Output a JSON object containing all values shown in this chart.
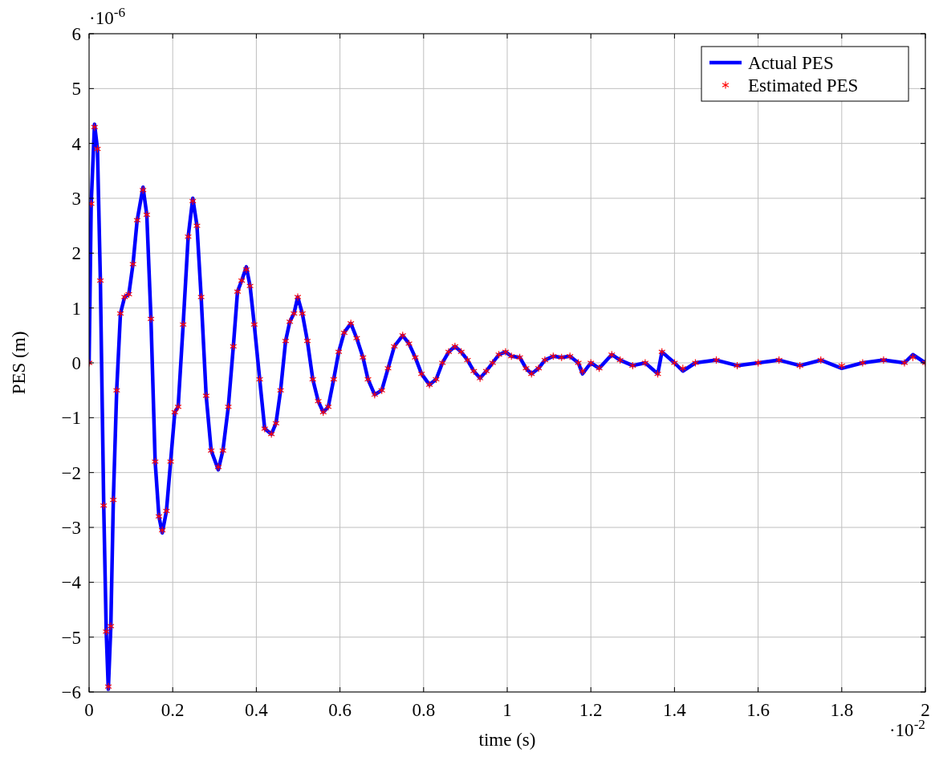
{
  "chart_data": {
    "type": "line",
    "xlabel": "time (s)",
    "ylabel": "PES (m)",
    "xlim": [
      0,
      2
    ],
    "xticks": [
      0,
      0.2,
      0.4,
      0.6,
      0.8,
      1,
      1.2,
      1.4,
      1.6,
      1.8,
      2
    ],
    "ylim": [
      -6,
      6
    ],
    "yticks": [
      -6,
      -5,
      -4,
      -3,
      -2,
      -1,
      0,
      1,
      2,
      3,
      4,
      5,
      6
    ],
    "grid": true,
    "legend": "top right",
    "annotations": [
      "·10$^{-6}$",
      "·10$^{-2}$"
    ],
    "x": [
      0,
      0.005,
      0.013,
      0.02,
      0.027,
      0.035,
      0.041,
      0.046,
      0.052,
      0.058,
      0.066,
      0.075,
      0.085,
      0.095,
      0.105,
      0.115,
      0.129,
      0.138,
      0.148,
      0.158,
      0.167,
      0.175,
      0.185,
      0.195,
      0.205,
      0.213,
      0.225,
      0.237,
      0.248,
      0.258,
      0.268,
      0.28,
      0.292,
      0.309,
      0.32,
      0.333,
      0.345,
      0.355,
      0.365,
      0.376,
      0.385,
      0.395,
      0.408,
      0.42,
      0.436,
      0.447,
      0.458,
      0.47,
      0.48,
      0.49,
      0.499,
      0.51,
      0.522,
      0.535,
      0.548,
      0.56,
      0.572,
      0.585,
      0.597,
      0.61,
      0.626,
      0.64,
      0.655,
      0.667,
      0.683,
      0.7,
      0.715,
      0.73,
      0.75,
      0.765,
      0.78,
      0.795,
      0.814,
      0.83,
      0.845,
      0.86,
      0.875,
      0.89,
      0.905,
      0.92,
      0.935,
      0.95,
      0.965,
      0.98,
      0.996,
      1.01,
      1.03,
      1.045,
      1.058,
      1.075,
      1.09,
      1.11,
      1.13,
      1.15,
      1.17,
      1.18,
      1.2,
      1.22,
      1.25,
      1.27,
      1.3,
      1.33,
      1.36,
      1.37,
      1.4,
      1.42,
      1.45,
      1.5,
      1.55,
      1.6,
      1.65,
      1.7,
      1.75,
      1.8,
      1.85,
      1.9,
      1.95,
      1.97,
      2
    ],
    "series": [
      {
        "name": "Actual PES",
        "color": "#0000ff",
        "values": [
          0,
          2.9,
          4.35,
          3.9,
          1.5,
          -2.6,
          -4.9,
          -5.95,
          -4.8,
          -2.5,
          -0.5,
          0.9,
          1.2,
          1.25,
          1.8,
          2.6,
          3.2,
          2.7,
          0.8,
          -1.8,
          -2.8,
          -3.1,
          -2.7,
          -1.8,
          -0.9,
          -0.8,
          0.7,
          2.3,
          3,
          2.5,
          1.2,
          -0.6,
          -1.6,
          -1.95,
          -1.6,
          -0.8,
          0.3,
          1.3,
          1.5,
          1.75,
          1.4,
          0.7,
          -0.3,
          -1.2,
          -1.3,
          -1.1,
          -0.5,
          0.4,
          0.75,
          0.9,
          1.2,
          0.9,
          0.4,
          -0.3,
          -0.7,
          -0.9,
          -0.8,
          -0.3,
          0.2,
          0.55,
          0.72,
          0.45,
          0.1,
          -0.3,
          -0.58,
          -0.5,
          -0.1,
          0.3,
          0.5,
          0.35,
          0.1,
          -0.2,
          -0.4,
          -0.3,
          0,
          0.2,
          0.3,
          0.2,
          0.05,
          -0.15,
          -0.28,
          -0.15,
          0,
          0.15,
          0.2,
          0.12,
          0.1,
          -0.1,
          -0.2,
          -0.1,
          0.05,
          0.12,
          0.1,
          0.12,
          0,
          -0.2,
          0,
          -0.1,
          0.15,
          0.05,
          -0.05,
          0,
          -0.2,
          0.2,
          0,
          -0.15,
          0,
          0.05,
          -0.05,
          0,
          0.05,
          -0.05,
          0.05,
          -0.1,
          0,
          0.05,
          0,
          0.15,
          0
        ]
      },
      {
        "name": "Estimated PES",
        "type": "scatter",
        "color": "#ff0000",
        "marker": "cross",
        "values": [
          0,
          2.9,
          4.3,
          3.9,
          1.5,
          -2.6,
          -4.9,
          -5.9,
          -4.8,
          -2.5,
          -0.5,
          0.9,
          1.2,
          1.25,
          1.8,
          2.6,
          3.15,
          2.7,
          0.8,
          -1.8,
          -2.8,
          -3.05,
          -2.7,
          -1.8,
          -0.9,
          -0.8,
          0.7,
          2.3,
          2.95,
          2.5,
          1.2,
          -0.6,
          -1.6,
          -1.9,
          -1.6,
          -0.8,
          0.3,
          1.3,
          1.5,
          1.7,
          1.4,
          0.7,
          -0.3,
          -1.2,
          -1.3,
          -1.1,
          -0.5,
          0.4,
          0.75,
          0.9,
          1.2,
          0.9,
          0.4,
          -0.3,
          -0.7,
          -0.9,
          -0.8,
          -0.3,
          0.2,
          0.55,
          0.72,
          0.45,
          0.1,
          -0.3,
          -0.58,
          -0.5,
          -0.1,
          0.3,
          0.5,
          0.35,
          0.1,
          -0.2,
          -0.4,
          -0.3,
          0,
          0.2,
          0.3,
          0.2,
          0.05,
          -0.15,
          -0.28,
          -0.15,
          0,
          0.15,
          0.2,
          0.12,
          0.1,
          -0.1,
          -0.2,
          -0.1,
          0.05,
          0.12,
          0.1,
          0.12,
          0,
          -0.15,
          0,
          -0.1,
          0.15,
          0.05,
          -0.05,
          0,
          -0.2,
          0.2,
          0,
          -0.1,
          0,
          0.05,
          -0.05,
          0,
          0.05,
          -0.05,
          0.05,
          -0.05,
          0,
          0.05,
          0,
          0.1,
          0
        ]
      }
    ]
  }
}
